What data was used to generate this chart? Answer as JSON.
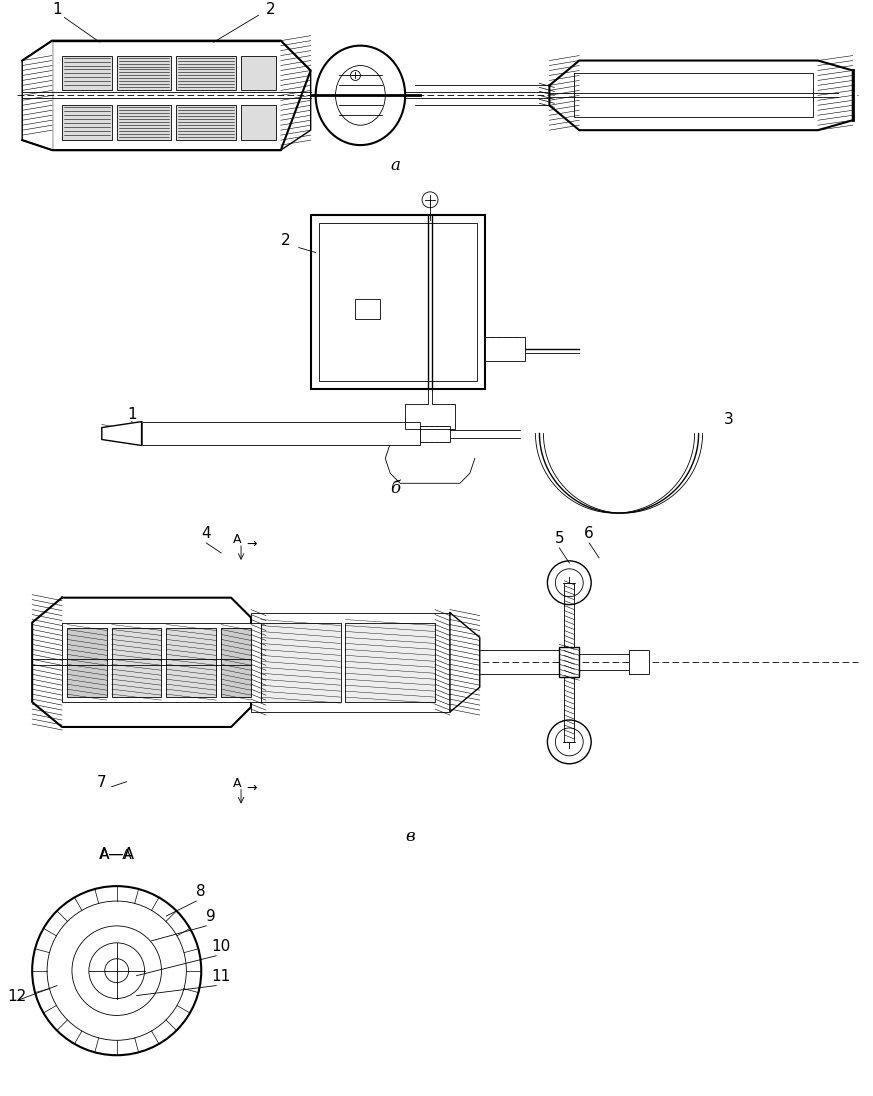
{
  "title": "",
  "background_color": "#ffffff",
  "line_color": "#000000",
  "hatch_color": "#000000",
  "labels": {
    "section_a": "а",
    "section_b": "б",
    "section_v": "в",
    "cross_section": "А—А",
    "num1_a": "1",
    "num2_a": "2",
    "num2_b": "2",
    "num1_b": "1",
    "num3_b": "3",
    "num4_v": "4",
    "num5_v": "5",
    "num6_v": "6",
    "num7_v": "7",
    "num8_cs": "8",
    "num9_cs": "9",
    "num10_cs": "10",
    "num11_cs": "11",
    "num12_cs": "12",
    "arrow_A": "A"
  },
  "figsize": [
    8.73,
    10.96
  ],
  "dpi": 100
}
